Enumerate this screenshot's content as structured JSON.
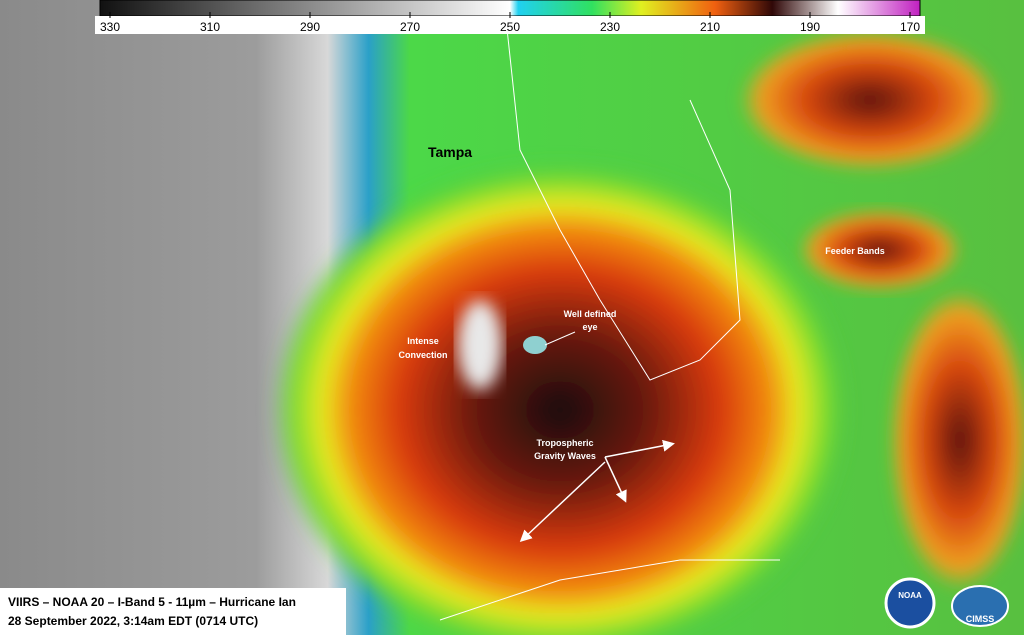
{
  "colorbar": {
    "range": [
      332,
      168
    ],
    "ticks": [
      330,
      310,
      290,
      270,
      250,
      230,
      210,
      190,
      170
    ]
  },
  "labels": {
    "tampa": "Tampa",
    "eye": [
      "Well defined",
      "eye"
    ],
    "convection": [
      "Intense",
      "Convection"
    ],
    "waves": [
      "Tropospheric",
      "Gravity Waves"
    ],
    "feeder": "Feeder Bands"
  },
  "caption": [
    "VIIRS – NOAA 20 – I-Band 5 - 11µm – Hurricane  Ian",
    "28 September 2022, 3:14am EDT (0714 UTC)"
  ],
  "logos": [
    "NOAA",
    "CIMSS"
  ]
}
